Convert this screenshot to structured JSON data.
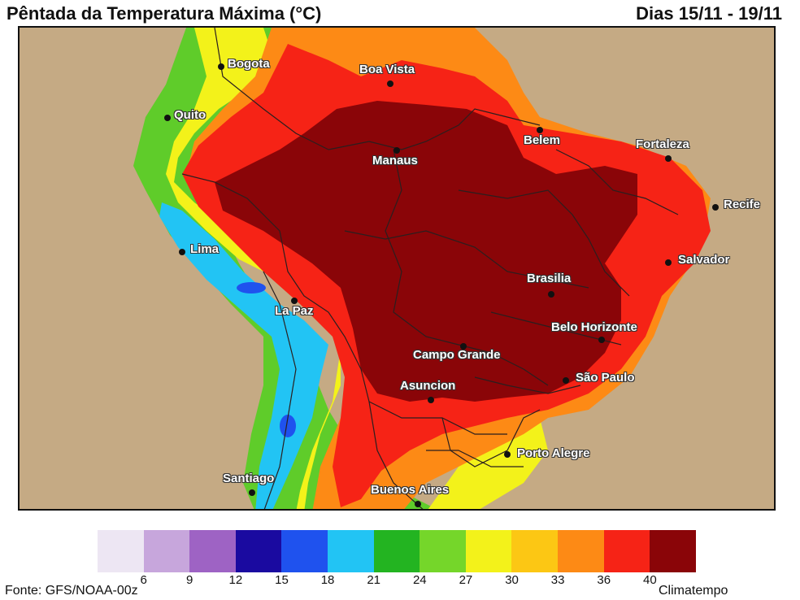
{
  "header": {
    "title": "Pêntada da Temperatura Máxima (°C)",
    "date_range": "Dias 15/11 - 19/11"
  },
  "map": {
    "ocean_color": "#c5aa84",
    "cities": [
      {
        "id": "bogota",
        "name": "Bogota"
      },
      {
        "id": "quito",
        "name": "Quito"
      },
      {
        "id": "boa-vista",
        "name": "Boa Vista"
      },
      {
        "id": "manaus",
        "name": "Manaus"
      },
      {
        "id": "belem",
        "name": "Belem"
      },
      {
        "id": "fortaleza",
        "name": "Fortaleza"
      },
      {
        "id": "recife",
        "name": "Recife"
      },
      {
        "id": "salvador",
        "name": "Salvador"
      },
      {
        "id": "lima",
        "name": "Lima"
      },
      {
        "id": "la-paz",
        "name": "La Paz"
      },
      {
        "id": "brasilia",
        "name": "Brasilia"
      },
      {
        "id": "belo-horizonte",
        "name": "Belo Horizonte"
      },
      {
        "id": "campo-grande",
        "name": "Campo Grande"
      },
      {
        "id": "asuncion",
        "name": "Asuncion"
      },
      {
        "id": "sao-paulo",
        "name": "São Paulo"
      },
      {
        "id": "porto-alegre",
        "name": "Porto Alegre"
      },
      {
        "id": "santiago",
        "name": "Santiago"
      },
      {
        "id": "buenos-aires",
        "name": "Buenos Aires"
      }
    ]
  },
  "legend": {
    "colors": [
      "#ede6f3",
      "#c7a6dc",
      "#9e63c4",
      "#1a0aa0",
      "#1f52ee",
      "#22c4f4",
      "#23b421",
      "#75d62a",
      "#f3f21a",
      "#fcc714",
      "#fd8a15",
      "#f62316",
      "#8a0508"
    ],
    "ticks": [
      "6",
      "9",
      "12",
      "15",
      "18",
      "21",
      "24",
      "27",
      "30",
      "33",
      "36",
      "40"
    ]
  },
  "footer": {
    "source": "Fonte: GFS/NOAA-00z",
    "brand": "Climatempo"
  }
}
